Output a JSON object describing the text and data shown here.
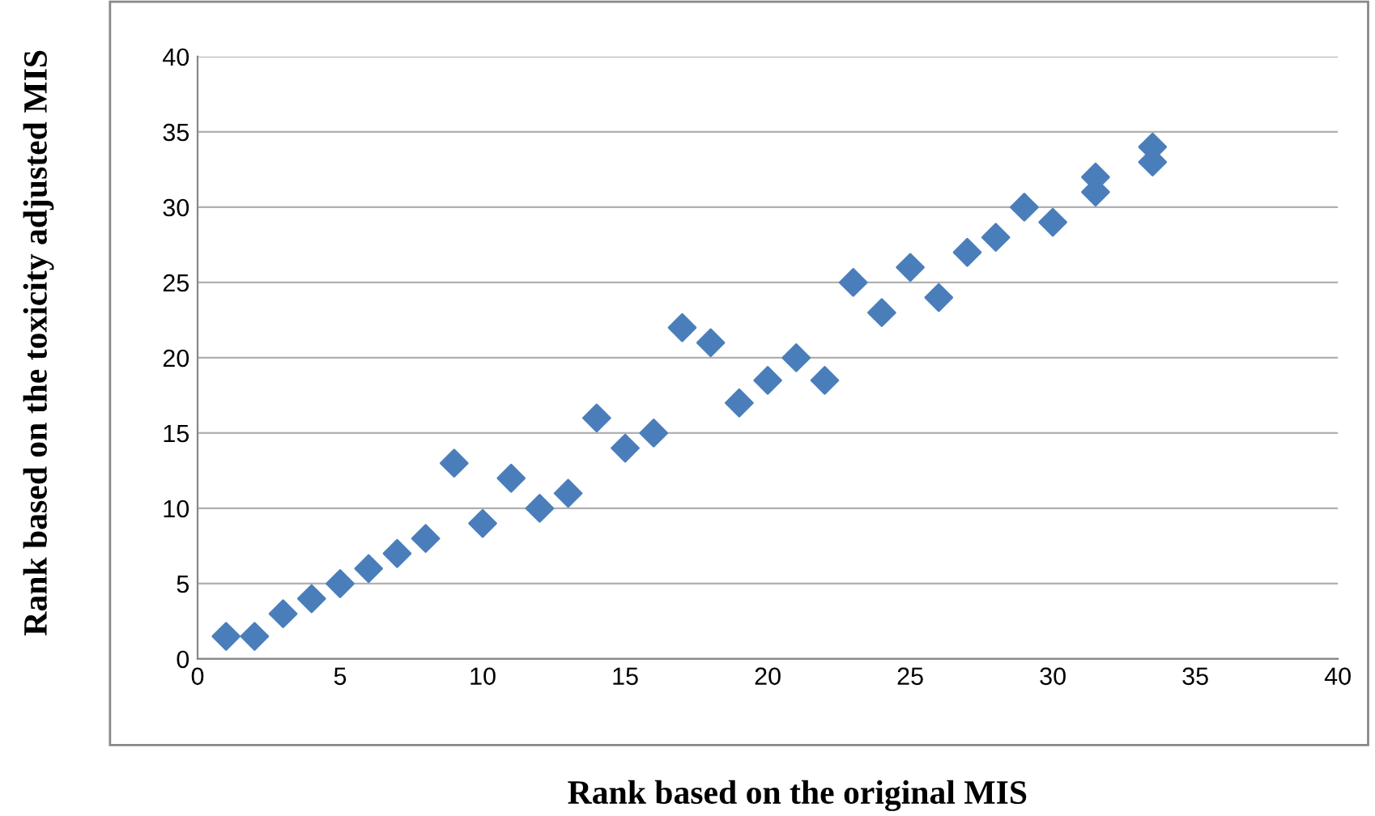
{
  "chart_data": {
    "type": "scatter",
    "xlabel": "Rank based on the original MIS",
    "ylabel": "Rank based on the toxicity adjusted MIS",
    "x": [
      1,
      2,
      3,
      4,
      5,
      6,
      7,
      8,
      9,
      10,
      11,
      12,
      13,
      14,
      15,
      16,
      17,
      18,
      19,
      20,
      21,
      22,
      23,
      24,
      25,
      26,
      27,
      28,
      29,
      30,
      31.5,
      31.5,
      33.5,
      33.5
    ],
    "series": [
      {
        "color": "#4a7ebb",
        "values": [
          1.5,
          1.5,
          3,
          4,
          5,
          6,
          7,
          8,
          13,
          9,
          12,
          10,
          11,
          16,
          14,
          15,
          22,
          21,
          17,
          18.5,
          20,
          18.5,
          25,
          23,
          26,
          24,
          27,
          28,
          30,
          29,
          32,
          31,
          34,
          33
        ]
      }
    ],
    "xlim": [
      0,
      40
    ],
    "ylim": [
      0,
      40
    ],
    "xticks": [
      0,
      5,
      10,
      15,
      20,
      25,
      30,
      35,
      40
    ],
    "yticks": [
      0,
      5,
      10,
      15,
      20,
      25,
      30,
      35,
      40
    ],
    "grid": "y",
    "marker": "diamond",
    "legend": false
  }
}
